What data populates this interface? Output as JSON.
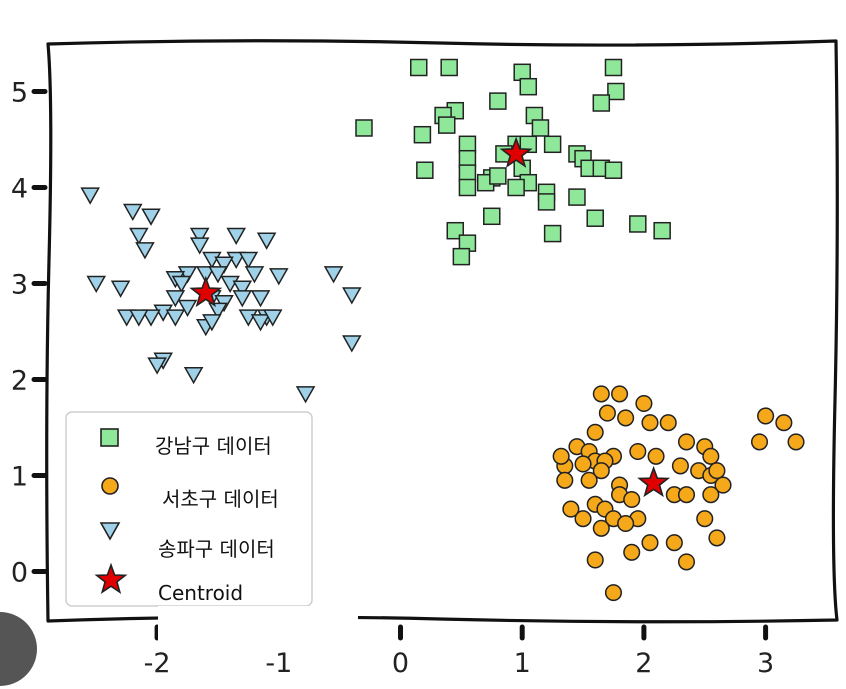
{
  "chart_data": {
    "type": "scatter",
    "xlim": [
      -2.5,
      3.5
    ],
    "ylim": [
      -0.5,
      5.5
    ],
    "x_ticks": [
      "-2",
      "-1",
      "0",
      "1",
      "2",
      "3"
    ],
    "y_ticks": [
      "0",
      "1",
      "2",
      "3",
      "4",
      "5"
    ],
    "grid": false,
    "legend_position": "lower-left",
    "series": [
      {
        "name": "강남구 데이터",
        "marker": "square",
        "color": "#8fe89a",
        "points": [
          [
            0.15,
            5.25
          ],
          [
            0.4,
            5.25
          ],
          [
            1.0,
            5.2
          ],
          [
            1.75,
            5.25
          ],
          [
            1.05,
            5.05
          ],
          [
            1.77,
            5.0
          ],
          [
            0.8,
            4.9
          ],
          [
            1.65,
            4.88
          ],
          [
            0.45,
            4.8
          ],
          [
            0.35,
            4.75
          ],
          [
            0.38,
            4.65
          ],
          [
            1.1,
            4.75
          ],
          [
            1.15,
            4.62
          ],
          [
            -0.3,
            4.62
          ],
          [
            0.18,
            4.55
          ],
          [
            0.55,
            4.45
          ],
          [
            0.95,
            4.45
          ],
          [
            1.05,
            4.45
          ],
          [
            1.25,
            4.45
          ],
          [
            1.45,
            4.35
          ],
          [
            0.55,
            4.3
          ],
          [
            0.85,
            4.35
          ],
          [
            1.0,
            4.2
          ],
          [
            1.5,
            4.3
          ],
          [
            1.55,
            4.2
          ],
          [
            1.65,
            4.2
          ],
          [
            1.75,
            4.18
          ],
          [
            0.2,
            4.18
          ],
          [
            0.55,
            4.15
          ],
          [
            0.75,
            4.1
          ],
          [
            0.7,
            4.05
          ],
          [
            0.8,
            4.12
          ],
          [
            1.05,
            4.05
          ],
          [
            0.55,
            4.0
          ],
          [
            1.2,
            3.95
          ],
          [
            1.2,
            3.85
          ],
          [
            1.45,
            3.9
          ],
          [
            0.95,
            4.0
          ],
          [
            1.6,
            3.68
          ],
          [
            0.75,
            3.7
          ],
          [
            0.45,
            3.55
          ],
          [
            0.55,
            3.42
          ],
          [
            0.5,
            3.28
          ],
          [
            1.25,
            3.52
          ],
          [
            1.95,
            3.62
          ],
          [
            2.15,
            3.55
          ]
        ]
      },
      {
        "name": "서초구 데이터",
        "marker": "circle",
        "color": "#f5a81a",
        "points": [
          [
            1.65,
            1.85
          ],
          [
            1.8,
            1.85
          ],
          [
            2.0,
            1.75
          ],
          [
            1.7,
            1.65
          ],
          [
            1.85,
            1.6
          ],
          [
            2.05,
            1.55
          ],
          [
            2.2,
            1.55
          ],
          [
            1.6,
            1.45
          ],
          [
            2.35,
            1.35
          ],
          [
            2.5,
            1.3
          ],
          [
            2.55,
            1.2
          ],
          [
            1.95,
            1.25
          ],
          [
            1.45,
            1.3
          ],
          [
            1.55,
            1.25
          ],
          [
            1.6,
            1.15
          ],
          [
            1.75,
            1.2
          ],
          [
            1.68,
            1.15
          ],
          [
            1.35,
            1.1
          ],
          [
            1.32,
            1.2
          ],
          [
            1.5,
            1.12
          ],
          [
            1.65,
            1.05
          ],
          [
            2.1,
            1.2
          ],
          [
            2.3,
            1.1
          ],
          [
            2.45,
            1.05
          ],
          [
            2.55,
            1.0
          ],
          [
            2.6,
            1.05
          ],
          [
            2.65,
            0.9
          ],
          [
            1.35,
            0.95
          ],
          [
            1.55,
            0.95
          ],
          [
            1.8,
            0.9
          ],
          [
            1.8,
            0.8
          ],
          [
            1.9,
            0.75
          ],
          [
            2.25,
            0.8
          ],
          [
            2.35,
            0.8
          ],
          [
            2.55,
            0.8
          ],
          [
            1.6,
            0.7
          ],
          [
            1.68,
            0.65
          ],
          [
            1.75,
            0.55
          ],
          [
            1.95,
            0.55
          ],
          [
            2.5,
            0.55
          ],
          [
            1.4,
            0.65
          ],
          [
            1.5,
            0.55
          ],
          [
            1.65,
            0.45
          ],
          [
            1.85,
            0.5
          ],
          [
            2.05,
            0.3
          ],
          [
            2.25,
            0.3
          ],
          [
            2.6,
            0.35
          ],
          [
            1.9,
            0.2
          ],
          [
            1.6,
            0.12
          ],
          [
            2.35,
            0.1
          ],
          [
            1.75,
            -0.22
          ],
          [
            3.0,
            1.62
          ],
          [
            3.15,
            1.55
          ],
          [
            2.95,
            1.35
          ],
          [
            3.25,
            1.35
          ]
        ]
      },
      {
        "name": "송파구 데이터",
        "marker": "triangle-down",
        "color": "#9fd2e8",
        "points": [
          [
            -2.55,
            3.92
          ],
          [
            -2.2,
            3.75
          ],
          [
            -2.05,
            3.7
          ],
          [
            -2.15,
            3.5
          ],
          [
            -1.65,
            3.5
          ],
          [
            -1.35,
            3.5
          ],
          [
            -1.1,
            3.45
          ],
          [
            -1.65,
            3.4
          ],
          [
            -2.1,
            3.35
          ],
          [
            -1.55,
            3.25
          ],
          [
            -1.35,
            3.25
          ],
          [
            -1.25,
            3.25
          ],
          [
            -1.45,
            3.2
          ],
          [
            -1.75,
            3.1
          ],
          [
            -1.6,
            3.1
          ],
          [
            -1.5,
            3.1
          ],
          [
            -1.2,
            3.1
          ],
          [
            -1.0,
            3.08
          ],
          [
            -0.55,
            3.1
          ],
          [
            -2.5,
            3.0
          ],
          [
            -2.3,
            2.95
          ],
          [
            -1.85,
            3.05
          ],
          [
            -1.8,
            3.0
          ],
          [
            -1.4,
            3.0
          ],
          [
            -1.3,
            2.95
          ],
          [
            -1.85,
            2.85
          ],
          [
            -1.55,
            2.85
          ],
          [
            -1.45,
            2.8
          ],
          [
            -1.3,
            2.85
          ],
          [
            -1.15,
            2.85
          ],
          [
            -0.4,
            2.88
          ],
          [
            -1.75,
            2.75
          ],
          [
            -1.5,
            2.72
          ],
          [
            -1.95,
            2.7
          ],
          [
            -2.05,
            2.65
          ],
          [
            -2.25,
            2.65
          ],
          [
            -2.15,
            2.65
          ],
          [
            -1.85,
            2.65
          ],
          [
            -1.25,
            2.65
          ],
          [
            -1.1,
            2.65
          ],
          [
            -1.15,
            2.6
          ],
          [
            -1.05,
            2.65
          ],
          [
            -1.6,
            2.55
          ],
          [
            -1.55,
            2.6
          ],
          [
            -0.4,
            2.38
          ],
          [
            -1.95,
            2.2
          ],
          [
            -2.0,
            2.15
          ],
          [
            -1.7,
            2.05
          ],
          [
            -0.78,
            1.85
          ]
        ]
      },
      {
        "name": "Centroid",
        "marker": "star",
        "color": "#e00000",
        "points": [
          [
            -1.6,
            2.9
          ],
          [
            0.95,
            4.35
          ],
          [
            2.08,
            0.92
          ]
        ]
      }
    ]
  }
}
